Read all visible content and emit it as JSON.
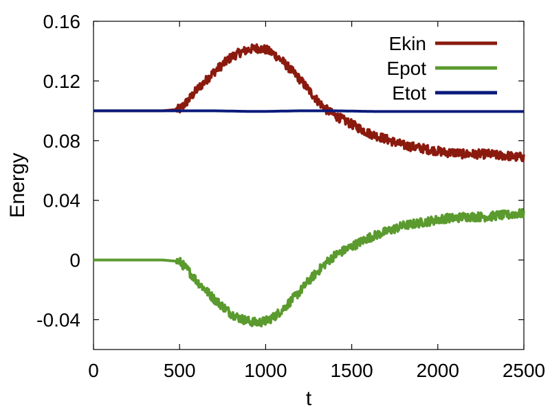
{
  "chart_data": {
    "type": "line",
    "title": "",
    "xlabel": "t",
    "ylabel": "Energy",
    "xlim": [
      0,
      2500
    ],
    "ylim": [
      -0.06,
      0.16
    ],
    "xticks": [
      0,
      500,
      1000,
      1500,
      2000,
      2500
    ],
    "xtick_labels": [
      "0",
      "500",
      "1000",
      "1500",
      "2000",
      "2500"
    ],
    "yticks": [
      -0.04,
      0,
      0.04,
      0.08,
      0.12,
      0.16
    ],
    "ytick_labels": [
      "-0.04",
      "0",
      "0.04",
      "0.08",
      "0.12",
      "0.16"
    ],
    "grid": false,
    "legend_position": "top-right",
    "x": [
      0,
      100,
      200,
      300,
      400,
      500,
      550,
      600,
      650,
      700,
      750,
      800,
      850,
      900,
      950,
      1000,
      1050,
      1100,
      1150,
      1200,
      1250,
      1300,
      1350,
      1400,
      1450,
      1500,
      1550,
      1600,
      1650,
      1700,
      1750,
      1800,
      1850,
      1900,
      1950,
      2000,
      2050,
      2100,
      2150,
      2200,
      2250,
      2300,
      2350,
      2400,
      2450,
      2500
    ],
    "series": [
      {
        "name": "Ekin",
        "color": "#8b1a0e",
        "noise": 0.003,
        "values": [
          0.1,
          0.1,
          0.1,
          0.1,
          0.1,
          0.101,
          0.107,
          0.114,
          0.12,
          0.126,
          0.131,
          0.136,
          0.139,
          0.141,
          0.142,
          0.141,
          0.138,
          0.133,
          0.127,
          0.121,
          0.114,
          0.107,
          0.101,
          0.097,
          0.094,
          0.091,
          0.088,
          0.085,
          0.083,
          0.081,
          0.079,
          0.077,
          0.076,
          0.075,
          0.074,
          0.073,
          0.072,
          0.072,
          0.071,
          0.071,
          0.071,
          0.071,
          0.07,
          0.07,
          0.069,
          0.069
        ]
      },
      {
        "name": "Epot",
        "color": "#5b9a2e",
        "noise": 0.003,
        "values": [
          0,
          0,
          0,
          0,
          0,
          -0.001,
          -0.007,
          -0.014,
          -0.02,
          -0.026,
          -0.031,
          -0.036,
          -0.039,
          -0.041,
          -0.042,
          -0.041,
          -0.038,
          -0.033,
          -0.027,
          -0.021,
          -0.014,
          -0.008,
          -0.002,
          0.003,
          0.006,
          0.009,
          0.012,
          0.015,
          0.017,
          0.019,
          0.021,
          0.023,
          0.024,
          0.025,
          0.026,
          0.027,
          0.028,
          0.028,
          0.029,
          0.029,
          0.029,
          0.029,
          0.03,
          0.03,
          0.031,
          0.031
        ]
      },
      {
        "name": "Etot",
        "color": "#0a1a7a",
        "noise": 0,
        "values": [
          0.1,
          0.1,
          0.1,
          0.1,
          0.1,
          0.1,
          0.1,
          0.1,
          0.1,
          0.1,
          0.0999,
          0.0998,
          0.0997,
          0.0996,
          0.0996,
          0.0996,
          0.0997,
          0.0998,
          0.0999,
          0.1,
          0.1,
          0.1,
          0.1,
          0.1,
          0.0999,
          0.0998,
          0.0997,
          0.0996,
          0.0995,
          0.0995,
          0.0995,
          0.0995,
          0.0995,
          0.0995,
          0.0995,
          0.0995,
          0.0995,
          0.0995,
          0.0995,
          0.0995,
          0.0995,
          0.0995,
          0.0995,
          0.0995,
          0.0995,
          0.0995
        ]
      }
    ]
  }
}
